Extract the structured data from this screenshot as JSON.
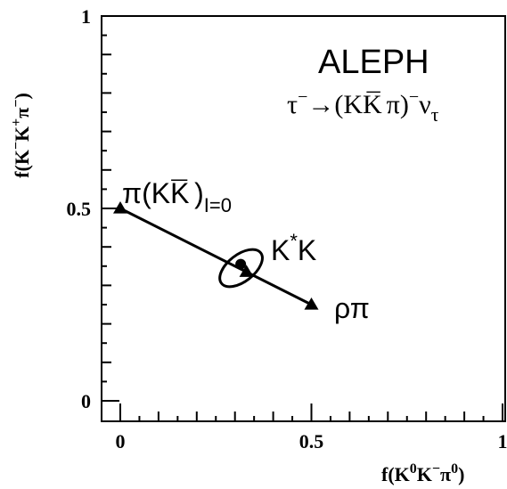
{
  "chart_data": {
    "type": "scatter",
    "title": "ALEPH",
    "subtitle": {
      "tau": "τ",
      "minus1": "−",
      "arrow": "→(KK",
      "kbar_mark": "¯",
      "tail": "π)",
      "minus2": "−",
      "nu": "ν",
      "nu_sub": "τ"
    },
    "xlabel": {
      "pre": "f(K",
      "sup0": "0",
      "mid": "K",
      "sup_minus": "−",
      "pi": "π",
      "sup0b": "0",
      "close": ")"
    },
    "ylabel": {
      "pre": "f(K",
      "sup_minus": "−",
      "mid": "K",
      "sup_plus": "+",
      "pi": "π",
      "sup_minus2": "−",
      "close": ")"
    },
    "xlim": [
      0,
      1
    ],
    "ylim": [
      0,
      1
    ],
    "x_tick_labels": [
      {
        "value": 0,
        "label": "0"
      },
      {
        "value": 0.5,
        "label": "0.5"
      },
      {
        "value": 1,
        "label": "1"
      }
    ],
    "y_tick_labels": [
      {
        "value": 0,
        "label": "0"
      },
      {
        "value": 0.5,
        "label": "0.5"
      },
      {
        "value": 1,
        "label": "1"
      }
    ],
    "line": {
      "from": [
        0,
        0.5
      ],
      "to": [
        0.5,
        0.25
      ]
    },
    "triangles": [
      {
        "x": 0,
        "y": 0.5
      },
      {
        "x": 0.5,
        "y": 0.25
      },
      {
        "x": 0.33,
        "y": 0.335
      }
    ],
    "measurement": {
      "x": 0.315,
      "y": 0.355
    },
    "ellipse": {
      "cx": 0.316,
      "cy": 0.345,
      "rx": 0.065,
      "ry": 0.035,
      "angle": -38
    },
    "point_labels": {
      "pi_kk": {
        "pi": "π(KK",
        "kbar_mark": "¯",
        "close": ")",
        "sub": "I=0"
      },
      "kstar": {
        "k": "K",
        "star": "*",
        "k2": "K"
      },
      "rhopi": {
        "text": "ρπ"
      }
    }
  }
}
